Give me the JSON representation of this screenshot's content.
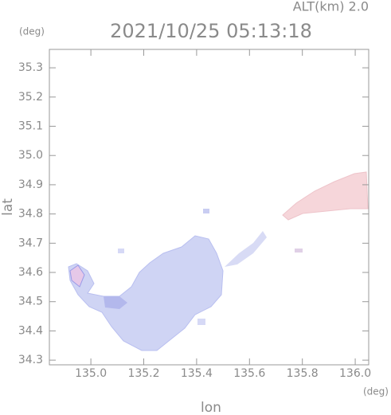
{
  "chart_data": {
    "type": "map",
    "title": "2021/10/25 05:13:18",
    "subtitle": "ALT(km) 2.0",
    "x_label": "lon",
    "y_label": "lat",
    "x_unit": "(deg)",
    "y_unit": "(deg)",
    "xlim": [
      134.843,
      136.051
    ],
    "ylim": [
      34.284,
      35.363
    ],
    "xticks": [
      {
        "value": 135,
        "label": "135.0"
      },
      135.2,
      135.4,
      135.6,
      135.8,
      {
        "value": 136,
        "label": "136.0"
      }
    ],
    "yticks": [
      34.3,
      34.4,
      34.5,
      34.6,
      34.7,
      34.8,
      34.9,
      {
        "value": 35,
        "label": "35.0"
      },
      35.1,
      35.2,
      35.3
    ]
  }
}
